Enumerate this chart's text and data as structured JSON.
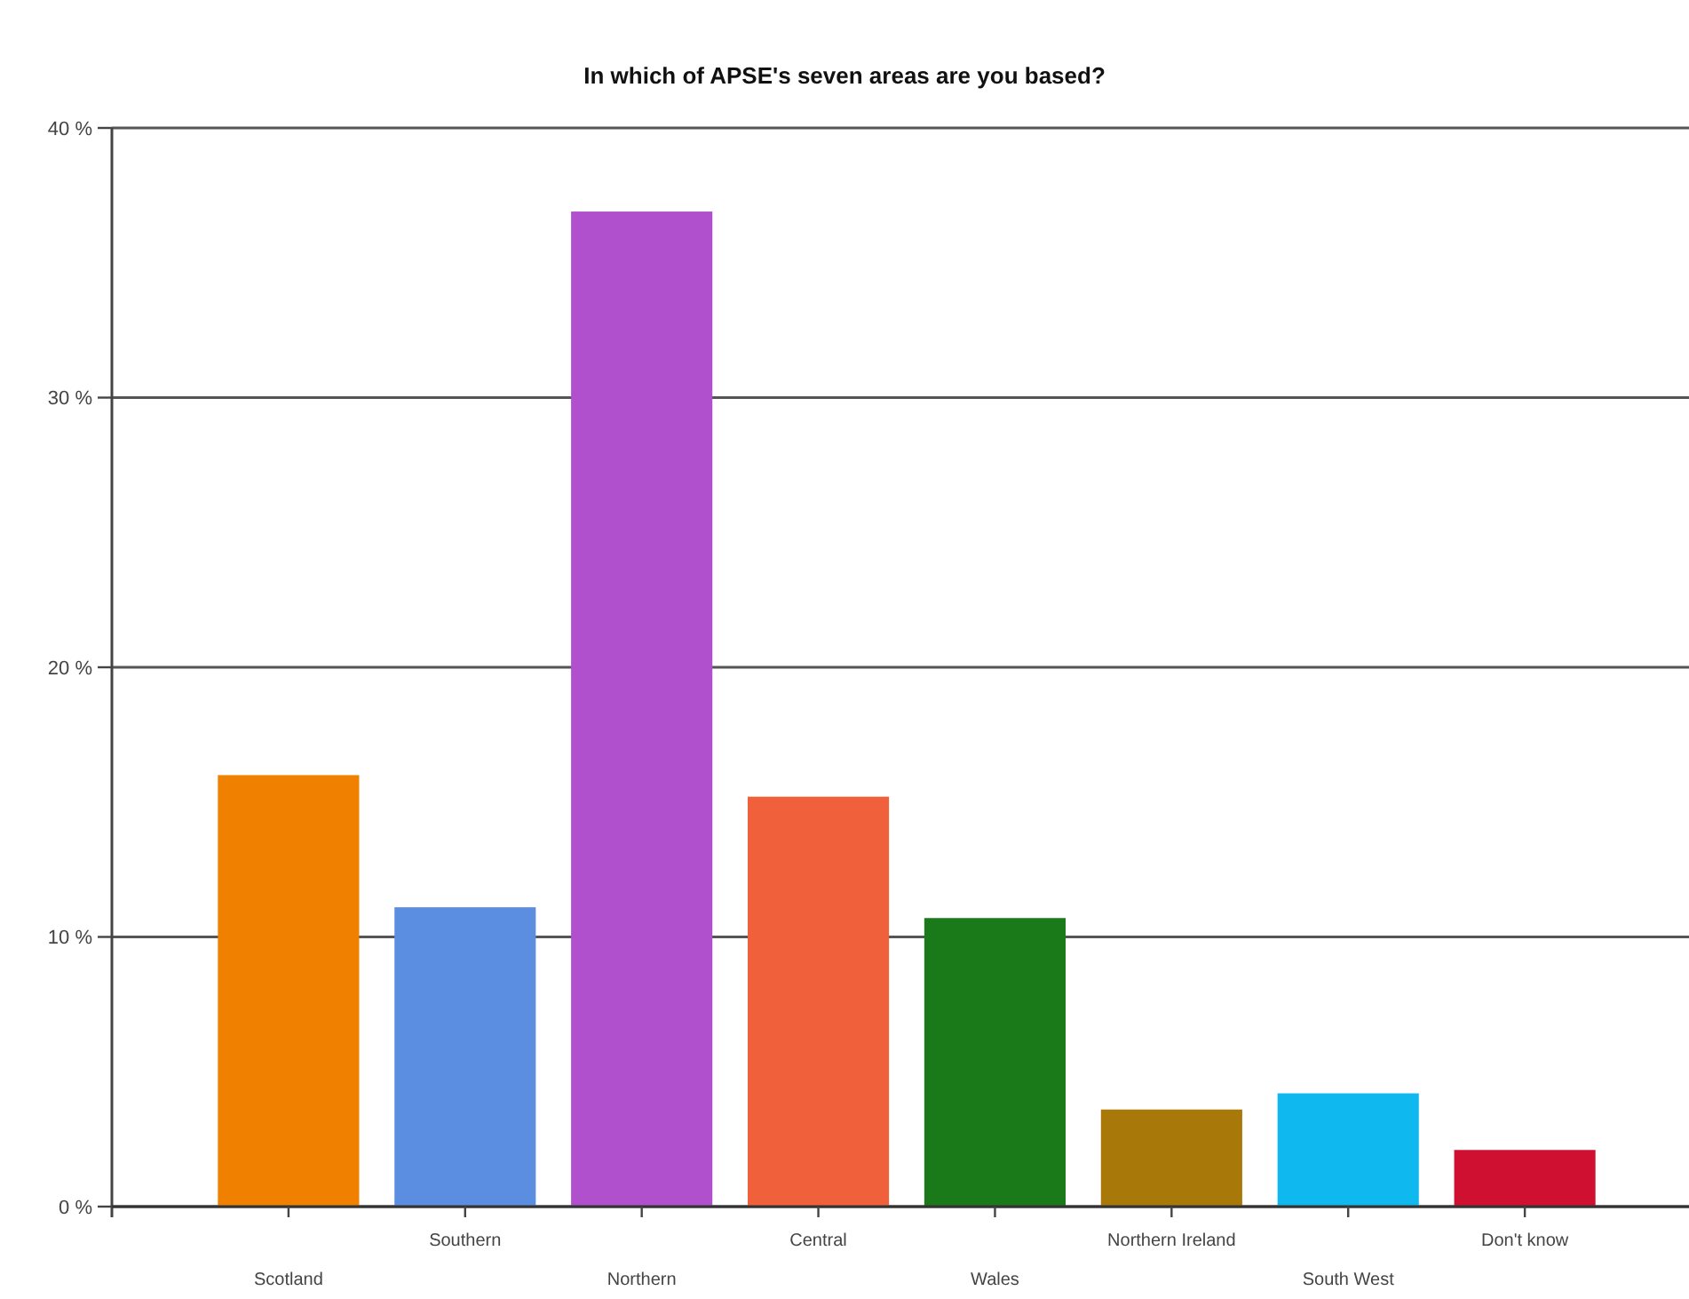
{
  "chart_data": {
    "type": "bar",
    "title": "In which of APSE's seven areas are you based?",
    "categories": [
      "Scotland",
      "Southern",
      "Northern",
      "Central",
      "Wales",
      "Northern Ireland",
      "South West",
      "Don't know"
    ],
    "values": [
      16.0,
      11.1,
      36.9,
      15.2,
      10.7,
      3.6,
      4.2,
      2.1
    ],
    "colors": [
      "#f08000",
      "#5b8ee0",
      "#b050cc",
      "#f0603a",
      "#1a7a1a",
      "#a87808",
      "#10b8f0",
      "#d01030"
    ],
    "ylim": [
      0,
      40
    ],
    "yticks": [
      {
        "value": 0,
        "label": "0 %"
      },
      {
        "value": 10,
        "label": "10 %"
      },
      {
        "value": 20,
        "label": "20 %"
      },
      {
        "value": 30,
        "label": "30 %"
      },
      {
        "value": 40,
        "label": "40 %"
      }
    ],
    "grid": "y"
  }
}
